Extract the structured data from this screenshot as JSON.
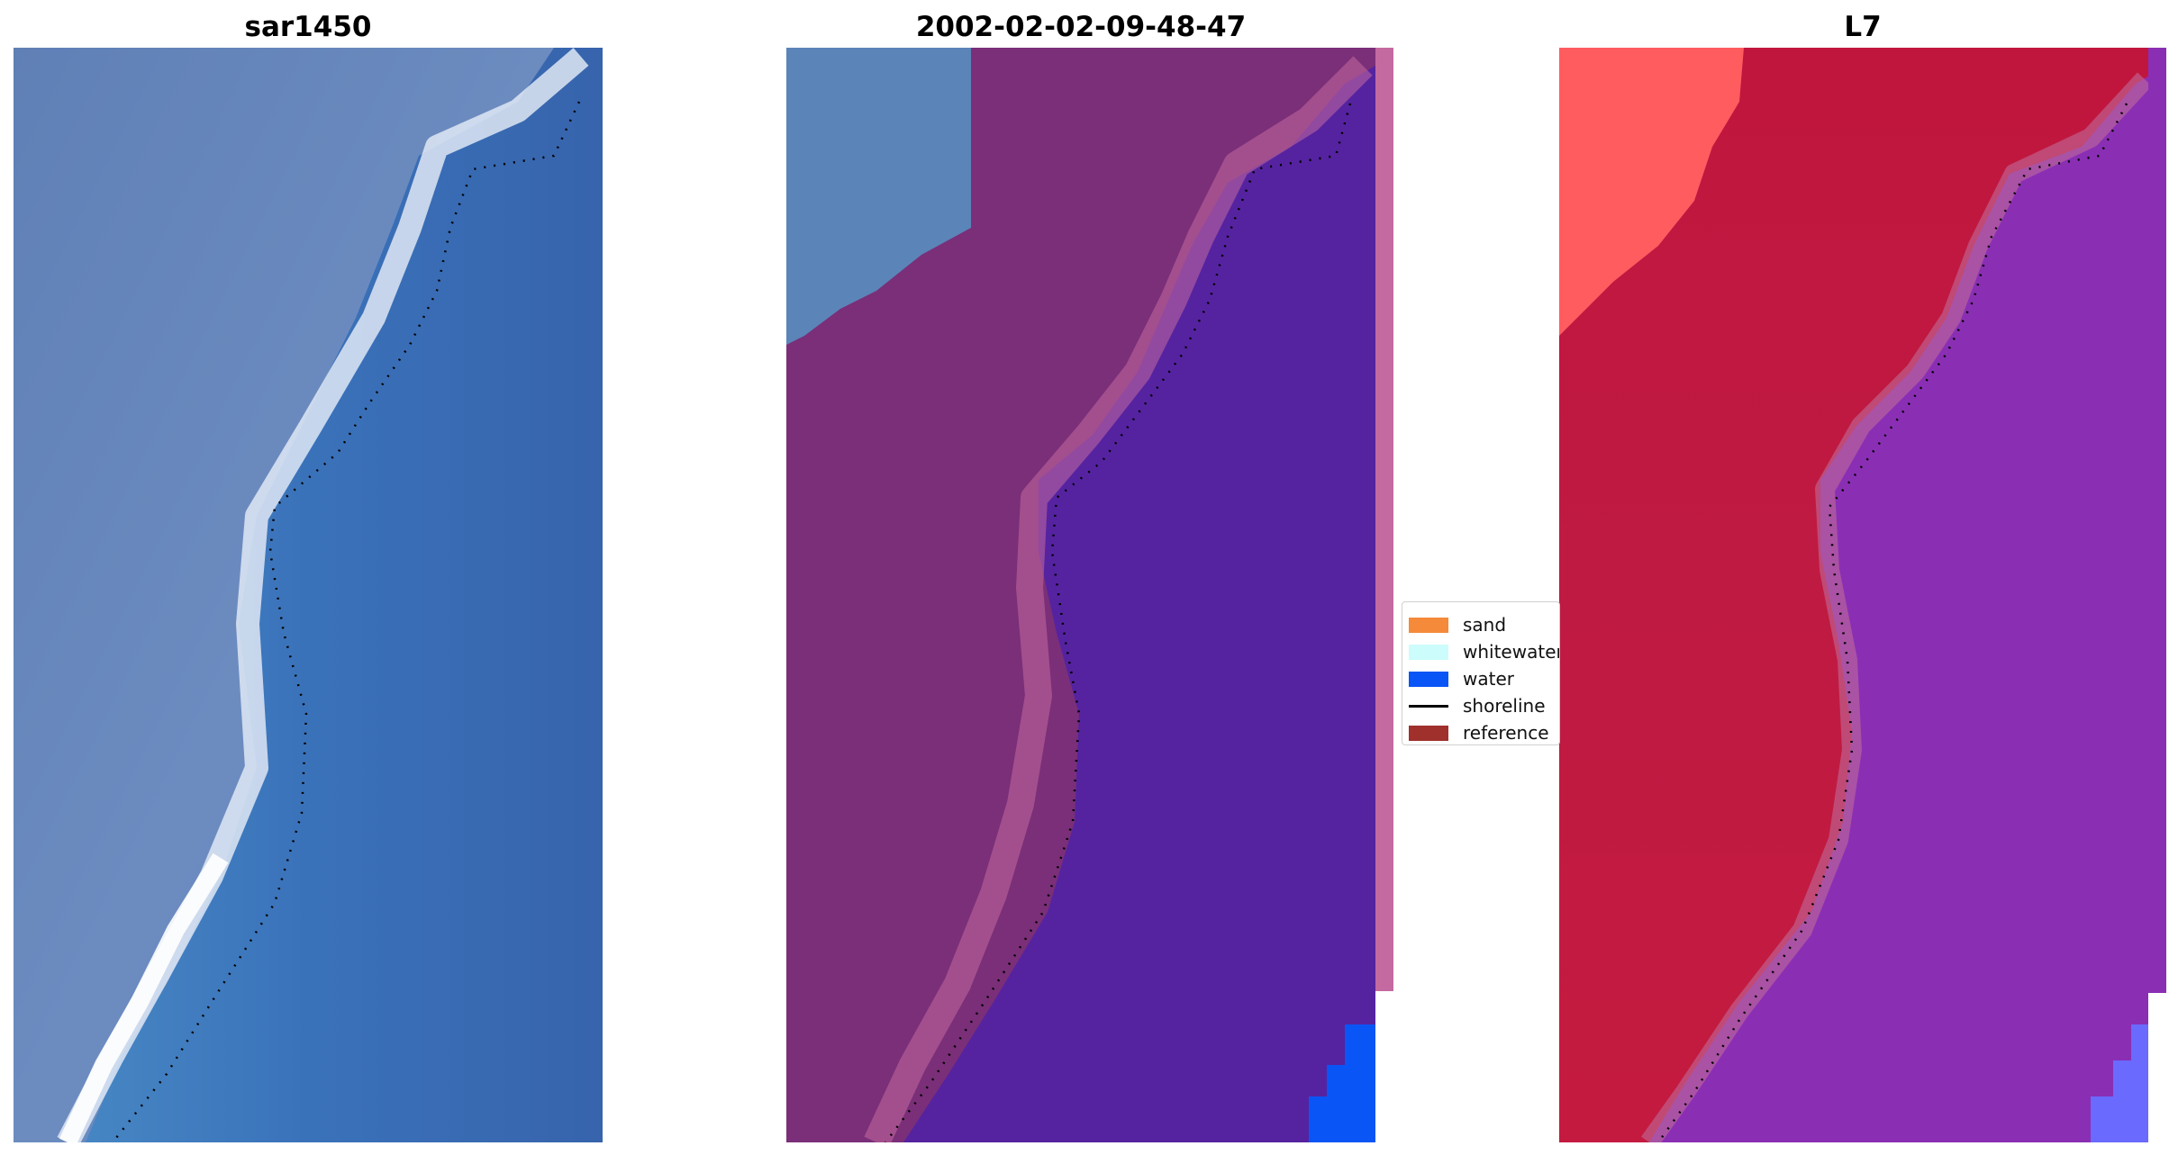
{
  "panels": [
    {
      "title": "sar1450"
    },
    {
      "title": "2002-02-02-09-48-47"
    },
    {
      "title": "L7"
    }
  ],
  "legend": {
    "items": [
      {
        "label": "sand",
        "color": "#f58a3a",
        "kind": "patch"
      },
      {
        "label": "whitewater",
        "color": "#ccfcfc",
        "kind": "patch"
      },
      {
        "label": "water",
        "color": "#0a55f5",
        "kind": "patch"
      },
      {
        "label": "shoreline",
        "color": "#000000",
        "kind": "line"
      },
      {
        "label": "reference",
        "color": "#a0302c",
        "kind": "patch"
      }
    ]
  },
  "colors": {
    "rgb_water": "#3c6bb4",
    "rgb_land": "#6a88bc",
    "rgb_surf": "#e8eef8",
    "class_land": "#7a2f78",
    "class_water": "#5523a0",
    "class_edge": "#c46aa0",
    "class_sea_blue": "#0a55f5",
    "l7_land": "#c0163e",
    "l7_land_light": "#ff5c60",
    "l7_water": "#8a2fb4",
    "l7_edge": "#c06a9a",
    "l7_sea_blue": "#6a6aff"
  }
}
